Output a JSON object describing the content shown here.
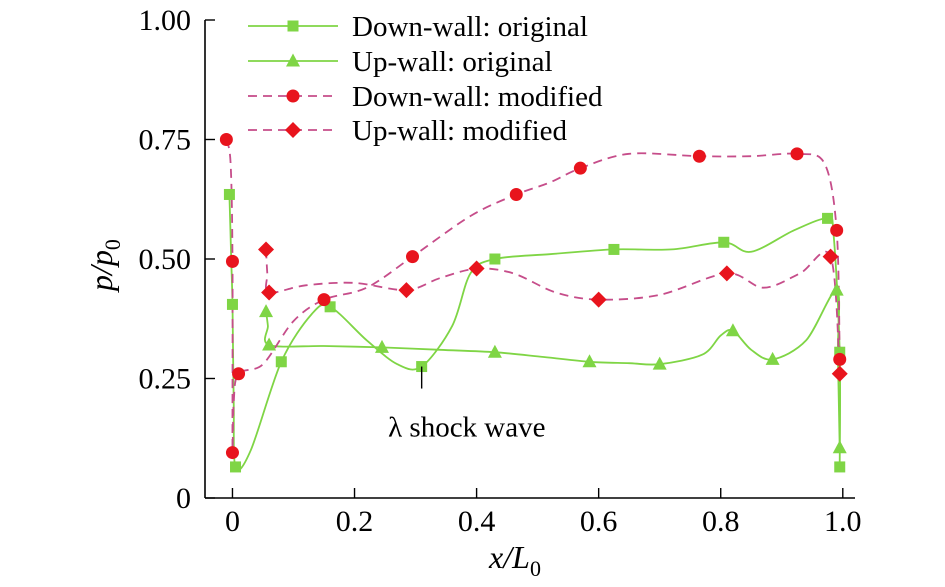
{
  "chart_data": {
    "type": "line",
    "title": "",
    "xlabel": "x/L0",
    "ylabel": "p/p0",
    "xlabel_parts": {
      "base": "x/L",
      "sub": "0"
    },
    "ylabel_parts": {
      "base": "p/p",
      "sub": "0"
    },
    "xlim": [
      -0.045,
      1.02
    ],
    "ylim": [
      0,
      1.0
    ],
    "x_ticks": [
      0,
      0.2,
      0.4,
      0.6,
      0.8,
      1.0
    ],
    "x_tick_labels": [
      "0",
      "0.2",
      "0.4",
      "0.6",
      "0.8",
      "1.0"
    ],
    "y_ticks": [
      0,
      0.25,
      0.5,
      0.75,
      1.0
    ],
    "y_tick_labels": [
      "0",
      "0.25",
      "0.50",
      "0.75",
      "1.00"
    ],
    "grid": false,
    "legend_position": "top-left",
    "colors": {
      "green": "#7fd545",
      "red": "#e8141d",
      "magenta": "#c64d8a"
    },
    "series": [
      {
        "name": "Down-wall: original",
        "marker": "square",
        "style": "solid",
        "line_color": "#7fd545",
        "marker_color": "#7fd545",
        "x": [
          -0.005,
          0.0,
          0.005,
          0.08,
          0.16,
          0.31,
          0.43,
          0.625,
          0.805,
          0.975,
          0.995,
          0.995
        ],
        "y": [
          0.635,
          0.405,
          0.065,
          0.285,
          0.4,
          0.275,
          0.5,
          0.52,
          0.535,
          0.585,
          0.305,
          0.065
        ],
        "path": [
          [
            -0.005,
            0.635
          ],
          [
            -0.002,
            0.5
          ],
          [
            0.0,
            0.405
          ],
          [
            0.002,
            0.2
          ],
          [
            0.005,
            0.065
          ],
          [
            0.03,
            0.1
          ],
          [
            0.08,
            0.285
          ],
          [
            0.13,
            0.385
          ],
          [
            0.16,
            0.4
          ],
          [
            0.22,
            0.33
          ],
          [
            0.27,
            0.28
          ],
          [
            0.31,
            0.275
          ],
          [
            0.36,
            0.36
          ],
          [
            0.39,
            0.47
          ],
          [
            0.43,
            0.5
          ],
          [
            0.52,
            0.51
          ],
          [
            0.625,
            0.52
          ],
          [
            0.72,
            0.52
          ],
          [
            0.805,
            0.535
          ],
          [
            0.85,
            0.515
          ],
          [
            0.92,
            0.56
          ],
          [
            0.975,
            0.585
          ],
          [
            0.985,
            0.55
          ],
          [
            0.995,
            0.305
          ],
          [
            0.995,
            0.065
          ]
        ]
      },
      {
        "name": "Up-wall: original",
        "marker": "triangle",
        "style": "solid",
        "line_color": "#7fd545",
        "marker_color": "#7fd545",
        "x": [
          0.055,
          0.06,
          0.245,
          0.43,
          0.585,
          0.7,
          0.82,
          0.885,
          0.99,
          0.995
        ],
        "y": [
          0.39,
          0.32,
          0.315,
          0.305,
          0.285,
          0.28,
          0.35,
          0.29,
          0.435,
          0.105
        ],
        "path": [
          [
            0.055,
            0.39
          ],
          [
            0.058,
            0.36
          ],
          [
            0.06,
            0.32
          ],
          [
            0.15,
            0.318
          ],
          [
            0.245,
            0.315
          ],
          [
            0.34,
            0.31
          ],
          [
            0.43,
            0.305
          ],
          [
            0.51,
            0.295
          ],
          [
            0.585,
            0.285
          ],
          [
            0.65,
            0.282
          ],
          [
            0.7,
            0.28
          ],
          [
            0.77,
            0.3
          ],
          [
            0.8,
            0.34
          ],
          [
            0.82,
            0.35
          ],
          [
            0.85,
            0.31
          ],
          [
            0.885,
            0.29
          ],
          [
            0.94,
            0.33
          ],
          [
            0.99,
            0.435
          ],
          [
            0.992,
            0.3
          ],
          [
            0.995,
            0.105
          ]
        ]
      },
      {
        "name": "Down-wall: modified",
        "marker": "circle",
        "style": "dashed",
        "line_color": "#c64d8a",
        "marker_color": "#e8141d",
        "x": [
          -0.01,
          0.0,
          0.0,
          0.01,
          0.15,
          0.295,
          0.465,
          0.57,
          0.765,
          0.925,
          0.99,
          0.995
        ],
        "y": [
          0.75,
          0.495,
          0.095,
          0.26,
          0.415,
          0.505,
          0.635,
          0.69,
          0.715,
          0.72,
          0.56,
          0.29
        ],
        "path": [
          [
            -0.01,
            0.75
          ],
          [
            -0.003,
            0.7
          ],
          [
            0.0,
            0.495
          ],
          [
            0.0,
            0.095
          ],
          [
            0.002,
            0.2
          ],
          [
            0.01,
            0.26
          ],
          [
            0.05,
            0.28
          ],
          [
            0.1,
            0.37
          ],
          [
            0.15,
            0.415
          ],
          [
            0.22,
            0.44
          ],
          [
            0.295,
            0.505
          ],
          [
            0.39,
            0.59
          ],
          [
            0.465,
            0.635
          ],
          [
            0.52,
            0.66
          ],
          [
            0.57,
            0.69
          ],
          [
            0.65,
            0.72
          ],
          [
            0.765,
            0.715
          ],
          [
            0.85,
            0.715
          ],
          [
            0.925,
            0.72
          ],
          [
            0.97,
            0.7
          ],
          [
            0.99,
            0.56
          ],
          [
            0.995,
            0.29
          ]
        ]
      },
      {
        "name": "Up-wall: modified",
        "marker": "diamond",
        "style": "dashed",
        "line_color": "#c64d8a",
        "marker_color": "#e8141d",
        "x": [
          0.055,
          0.06,
          0.285,
          0.4,
          0.6,
          0.81,
          0.98,
          0.995
        ],
        "y": [
          0.52,
          0.43,
          0.435,
          0.48,
          0.415,
          0.47,
          0.505,
          0.26
        ],
        "path": [
          [
            0.055,
            0.52
          ],
          [
            0.057,
            0.47
          ],
          [
            0.06,
            0.43
          ],
          [
            0.12,
            0.445
          ],
          [
            0.2,
            0.45
          ],
          [
            0.285,
            0.435
          ],
          [
            0.34,
            0.46
          ],
          [
            0.4,
            0.48
          ],
          [
            0.46,
            0.47
          ],
          [
            0.53,
            0.43
          ],
          [
            0.6,
            0.415
          ],
          [
            0.7,
            0.425
          ],
          [
            0.81,
            0.47
          ],
          [
            0.87,
            0.44
          ],
          [
            0.93,
            0.47
          ],
          [
            0.98,
            0.505
          ],
          [
            0.995,
            0.26
          ]
        ]
      }
    ],
    "annotations": [
      {
        "text": "λ shock wave",
        "x": 0.31,
        "y": 0.275,
        "label_x": 0.255,
        "label_y": 0.145
      }
    ]
  }
}
